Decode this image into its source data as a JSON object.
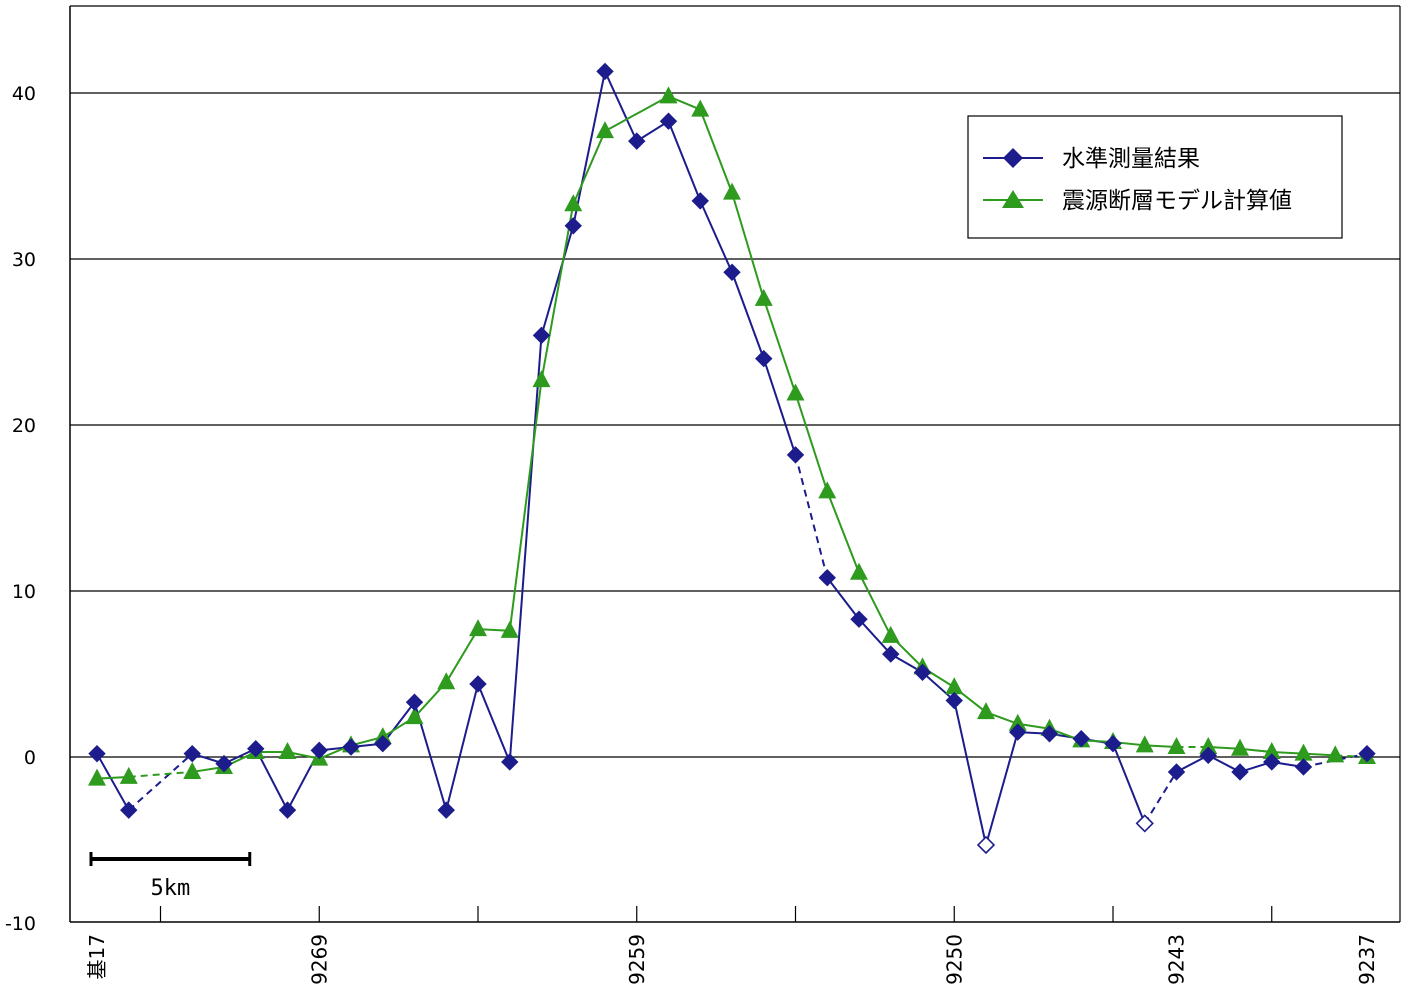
{
  "chart_data": {
    "type": "line",
    "title": "",
    "xlabel": "",
    "ylabel": "",
    "ylim": [
      -10,
      45
    ],
    "yticks": [
      "40",
      "30",
      "20",
      "10",
      "0",
      "-10"
    ],
    "ytick_values": [
      40,
      30,
      20,
      10,
      0,
      -10
    ],
    "grid": true,
    "legend_position": "top-right",
    "xtick_labels": [
      "基17",
      "9269",
      "9259",
      "9250",
      "9243",
      "9237"
    ],
    "xtick_positions": [
      0,
      7,
      17,
      27,
      34,
      40
    ],
    "x_count": 41,
    "scale_bar": {
      "label": "5km",
      "length_points": 5
    },
    "colors": {
      "observed": "#1c1c8c",
      "model": "#2e9a1e",
      "grid": "#000000"
    },
    "series": [
      {
        "name": "水準測量結果",
        "marker": "diamond",
        "values": [
          0.2,
          -3.2,
          null,
          0.2,
          -0.4,
          0.5,
          -3.2,
          0.4,
          0.6,
          0.8,
          3.3,
          -3.2,
          4.4,
          -0.3,
          25.4,
          32.0,
          41.3,
          37.1,
          38.3,
          33.5,
          29.2,
          24.0,
          18.2,
          10.8,
          8.3,
          6.2,
          5.1,
          3.4,
          -5.3,
          1.5,
          1.4,
          1.1,
          0.8,
          -4.0,
          -0.9,
          0.1,
          -0.9,
          -0.3,
          -0.6,
          null,
          0.2
        ],
        "open_marker_indices": [
          28,
          33
        ],
        "dashed_segments": [
          [
            1,
            3
          ],
          [
            22,
            23
          ],
          [
            33,
            34
          ],
          [
            38,
            40
          ]
        ]
      },
      {
        "name": "震源断層モデル計算値",
        "marker": "triangle",
        "values": [
          -1.3,
          -1.2,
          null,
          -0.9,
          -0.6,
          0.3,
          0.3,
          -0.1,
          0.7,
          1.2,
          2.4,
          4.5,
          7.7,
          7.6,
          22.7,
          33.3,
          37.7,
          null,
          39.8,
          39.0,
          34.0,
          27.6,
          21.9,
          16.0,
          11.1,
          7.3,
          5.4,
          4.2,
          2.7,
          2.0,
          1.7,
          1.0,
          0.9,
          0.7,
          0.6,
          0.6,
          0.5,
          0.3,
          0.2,
          0.1,
          0.0
        ],
        "dashed_segments": [
          [
            1,
            3
          ],
          [
            34,
            35
          ],
          [
            39,
            40
          ]
        ]
      }
    ]
  },
  "legend": {
    "items": [
      {
        "label": "水準測量結果"
      },
      {
        "label": "震源断層モデル計算値"
      }
    ]
  }
}
